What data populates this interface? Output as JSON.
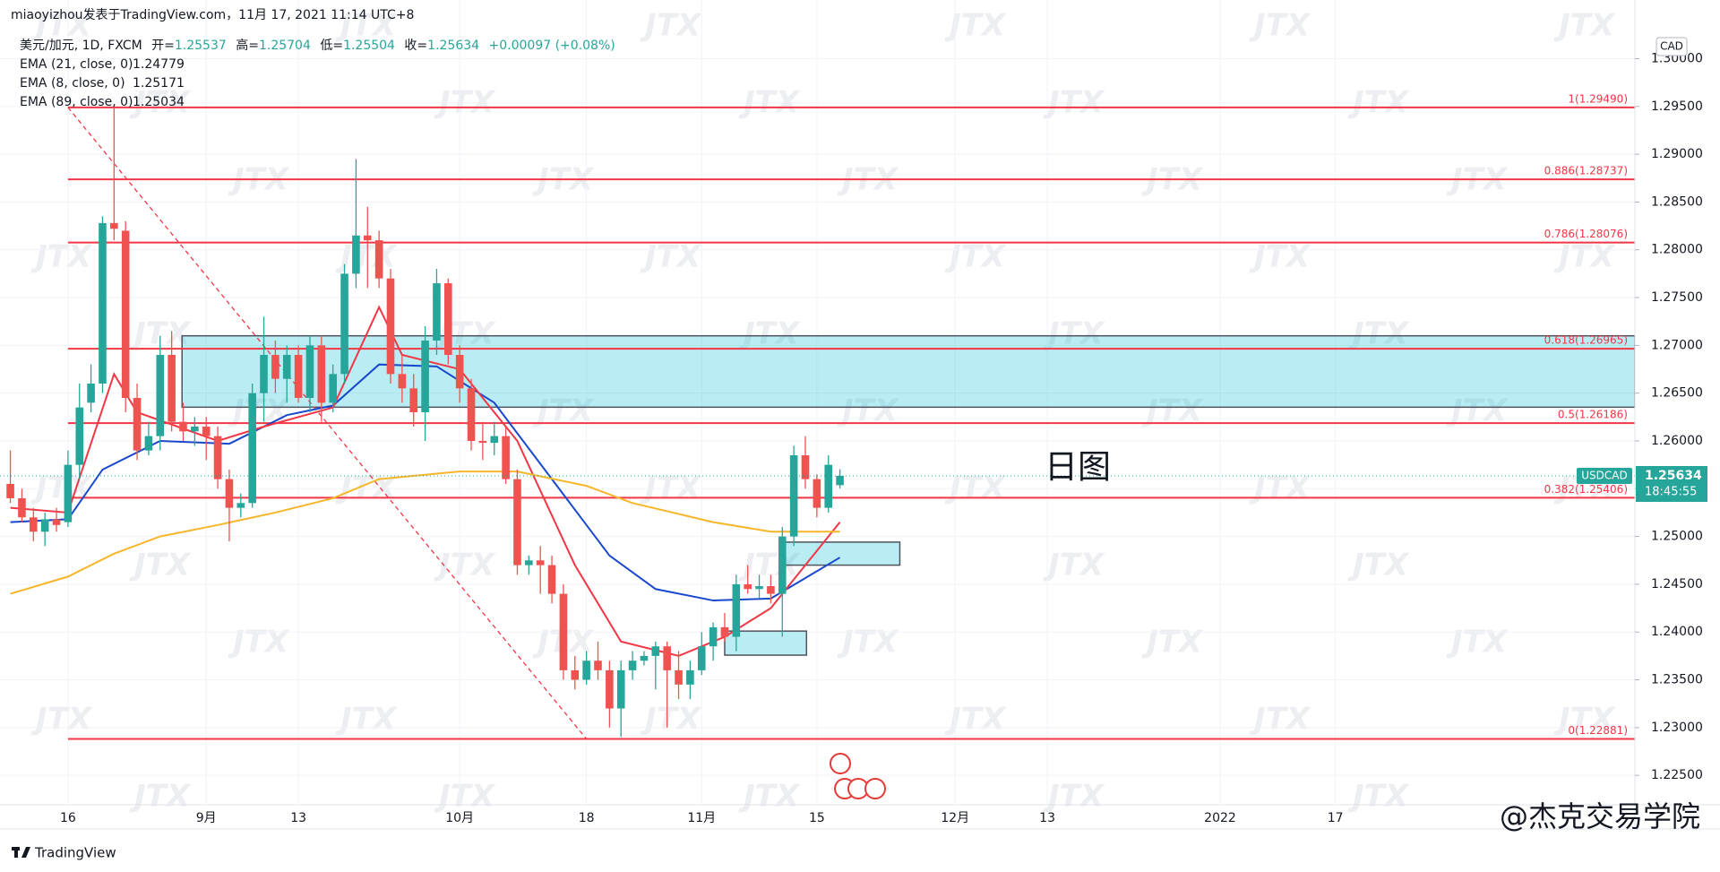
{
  "header": {
    "publisher": "miaoyizhou发表于TradingView.com，11月 17, 2021 11:14 UTC+8",
    "symbol": "美元/加元, 1D, FXCM",
    "ohlc": [
      {
        "label": "开=",
        "value": 1.25537
      },
      {
        "label": "高=",
        "value": 1.25704
      },
      {
        "label": "低=",
        "value": 1.25504
      },
      {
        "label": "收=",
        "value": 1.25634
      }
    ],
    "change": "+0.00097 (+0.08%)",
    "currency": "CAD",
    "annotation": "日图",
    "watermark": "JTX",
    "signature": "@杰克交易学院",
    "brand": "TradingView"
  },
  "chart_data": {
    "type": "candlestick",
    "up_color": "#26a69a",
    "down_color": "#ef5350",
    "xlim": [
      -0.9,
      141
    ],
    "ylim": [
      1.22192,
      1.30333
    ],
    "grid": true,
    "xticks": [
      {
        "value": 5,
        "label": "16"
      },
      {
        "value": 17,
        "label": "9月"
      },
      {
        "value": 25,
        "label": "13"
      },
      {
        "value": 39,
        "label": "10月"
      },
      {
        "value": 50,
        "label": "18"
      },
      {
        "value": 60,
        "label": "11月"
      },
      {
        "value": 70,
        "label": "15"
      },
      {
        "value": 82,
        "label": "12月"
      },
      {
        "value": 90,
        "label": "13"
      },
      {
        "value": 105,
        "label": "2022"
      },
      {
        "value": 115,
        "label": "17"
      }
    ],
    "yticks": [
      {
        "value": 1.3,
        "label": "1.30000"
      },
      {
        "value": 1.295,
        "label": "1.29500"
      },
      {
        "value": 1.29,
        "label": "1.29000"
      },
      {
        "value": 1.285,
        "label": "1.28500"
      },
      {
        "value": 1.28,
        "label": "1.28000"
      },
      {
        "value": 1.275,
        "label": "1.27500"
      },
      {
        "value": 1.27,
        "label": "1.27000"
      },
      {
        "value": 1.265,
        "label": "1.26500"
      },
      {
        "value": 1.26,
        "label": "1.26000"
      },
      {
        "value": 1.255,
        "label": "1.25500"
      },
      {
        "value": 1.25,
        "label": "1.25000"
      },
      {
        "value": 1.245,
        "label": "1.24500"
      },
      {
        "value": 1.24,
        "label": "1.24000"
      },
      {
        "value": 1.235,
        "label": "1.23500"
      },
      {
        "value": 1.23,
        "label": "1.23000"
      },
      {
        "value": 1.225,
        "label": "1.22500"
      }
    ],
    "open": [
      1.2555,
      1.254,
      1.252,
      1.2505,
      1.2518,
      1.2515,
      1.2575,
      1.264,
      1.266,
      1.2828,
      1.282,
      1.2645,
      1.259,
      1.2605,
      1.269,
      1.262,
      1.261,
      1.2615,
      1.2605,
      1.256,
      1.253,
      1.2535,
      1.265,
      1.269,
      1.2665,
      1.269,
      1.2645,
      1.27,
      1.264,
      1.267,
      1.2775,
      1.2815,
      1.281,
      1.277,
      1.267,
      1.2655,
      1.263,
      1.2705,
      1.2765,
      1.269,
      1.2655,
      1.26,
      1.2598,
      1.2605,
      1.256,
      1.247,
      1.2475,
      1.247,
      1.244,
      1.236,
      1.235,
      1.237,
      1.236,
      1.232,
      1.236,
      1.237,
      1.2375,
      1.2385,
      1.236,
      1.2345,
      1.236,
      1.2385,
      1.2405,
      1.2395,
      1.245,
      1.2445,
      1.2448,
      1.244,
      1.25,
      1.2585,
      1.256,
      1.253,
      1.25537
    ],
    "high": [
      1.259,
      1.255,
      1.253,
      1.2525,
      1.253,
      1.259,
      1.266,
      1.268,
      1.2835,
      1.295,
      1.283,
      1.266,
      1.262,
      1.271,
      1.2715,
      1.264,
      1.2625,
      1.2625,
      1.2615,
      1.257,
      1.2545,
      1.266,
      1.273,
      1.2705,
      1.27,
      1.27,
      1.271,
      1.271,
      1.268,
      1.2785,
      1.2895,
      1.2845,
      1.282,
      1.278,
      1.269,
      1.267,
      1.272,
      1.278,
      1.277,
      1.27,
      1.2665,
      1.262,
      1.262,
      1.2615,
      1.257,
      1.248,
      1.249,
      1.248,
      1.245,
      1.2375,
      1.238,
      1.239,
      1.237,
      1.237,
      1.238,
      1.238,
      1.239,
      1.239,
      1.238,
      1.237,
      1.24,
      1.241,
      1.242,
      1.246,
      1.247,
      1.246,
      1.246,
      1.251,
      1.2595,
      1.2605,
      1.2565,
      1.2585,
      1.25704
    ],
    "low": [
      1.2535,
      1.2515,
      1.2495,
      1.249,
      1.2505,
      1.251,
      1.256,
      1.263,
      1.265,
      1.281,
      1.263,
      1.258,
      1.2585,
      1.259,
      1.261,
      1.26,
      1.2595,
      1.258,
      1.255,
      1.2495,
      1.252,
      1.253,
      1.262,
      1.265,
      1.264,
      1.264,
      1.263,
      1.262,
      1.263,
      1.266,
      1.276,
      1.276,
      1.276,
      1.266,
      1.264,
      1.2615,
      1.26,
      1.269,
      1.268,
      1.264,
      1.259,
      1.258,
      1.2585,
      1.2555,
      1.246,
      1.246,
      1.244,
      1.243,
      1.235,
      1.234,
      1.2345,
      1.235,
      1.23,
      1.229,
      1.235,
      1.2365,
      1.234,
      1.23,
      1.233,
      1.233,
      1.2355,
      1.237,
      1.239,
      1.238,
      1.244,
      1.2435,
      1.243,
      1.2395,
      1.249,
      1.255,
      1.252,
      1.2525,
      1.25504
    ],
    "close": [
      1.254,
      1.252,
      1.2505,
      1.2518,
      1.2512,
      1.2575,
      1.2635,
      1.266,
      1.2828,
      1.2822,
      1.2645,
      1.259,
      1.2605,
      1.269,
      1.262,
      1.261,
      1.2615,
      1.2605,
      1.256,
      1.253,
      1.2535,
      1.265,
      1.269,
      1.2665,
      1.269,
      1.2645,
      1.27,
      1.264,
      1.267,
      1.2775,
      1.2815,
      1.281,
      1.277,
      1.267,
      1.2655,
      1.263,
      1.2705,
      1.2765,
      1.269,
      1.2655,
      1.26,
      1.2598,
      1.2605,
      1.256,
      1.247,
      1.2475,
      1.247,
      1.244,
      1.236,
      1.235,
      1.237,
      1.236,
      1.232,
      1.236,
      1.237,
      1.2375,
      1.2385,
      1.236,
      1.2345,
      1.236,
      1.2385,
      1.2405,
      1.2395,
      1.245,
      1.2445,
      1.2448,
      1.244,
      1.25,
      1.2585,
      1.256,
      1.253,
      1.2575,
      1.25634
    ],
    "series": [
      {
        "name": "EMA (21, close, 0)",
        "last": 1.24779,
        "color": "#1848cc",
        "x": [
          0,
          5,
          8,
          13,
          19,
          24,
          28,
          32,
          37,
          42,
          47,
          52,
          56,
          61,
          66,
          72
        ],
        "values": [
          1.2515,
          1.2518,
          1.257,
          1.26,
          1.2597,
          1.2627,
          1.2637,
          1.268,
          1.2678,
          1.264,
          1.256,
          1.248,
          1.2445,
          1.2433,
          1.2435,
          1.2478
        ]
      },
      {
        "name": "EMA (8, close, 0)",
        "last": 1.25171,
        "color": "#f23645",
        "x": [
          0,
          5,
          9,
          11,
          18,
          22,
          28,
          32,
          34,
          39,
          44,
          49,
          53,
          58,
          62,
          66,
          72
        ],
        "values": [
          1.253,
          1.2525,
          1.267,
          1.263,
          1.26,
          1.2615,
          1.2635,
          1.274,
          1.269,
          1.2675,
          1.26,
          1.247,
          1.239,
          1.2375,
          1.2395,
          1.2425,
          1.2515
        ]
      },
      {
        "name": "EMA (89, close, 0)",
        "last": 1.25034,
        "color": "#f7b62a",
        "x": [
          0,
          5,
          9,
          13,
          18,
          23,
          28,
          32,
          39,
          44,
          50,
          54,
          61,
          66,
          72
        ],
        "values": [
          1.244,
          1.2458,
          1.2482,
          1.25,
          1.2512,
          1.2525,
          1.254,
          1.256,
          1.2568,
          1.2568,
          1.2553,
          1.2535,
          1.2515,
          1.2505,
          1.2505
        ]
      }
    ],
    "fib": {
      "color": "#f23645",
      "x": [
        5,
        141
      ],
      "levels": [
        {
          "value": 1.2949,
          "label": "1(1.29490)"
        },
        {
          "value": 1.28737,
          "label": "0.886(1.28737)"
        },
        {
          "value": 1.28076,
          "label": "0.786(1.28076)"
        },
        {
          "value": 1.26965,
          "label": "0.618(1.26965)"
        },
        {
          "value": 1.26186,
          "label": "0.5(1.26186)"
        },
        {
          "value": 1.25406,
          "label": "0.382(1.25406)"
        },
        {
          "value": 1.22881,
          "label": "0(1.22881)"
        }
      ]
    },
    "trendline": {
      "x": [
        5,
        50
      ],
      "values": [
        1.2949,
        1.22881
      ]
    },
    "zones": [
      {
        "x": [
          14.9,
          141
        ],
        "y": [
          1.271,
          1.26353
        ]
      },
      {
        "x": [
          67,
          77.2
        ],
        "y": [
          1.24941,
          1.247
        ]
      },
      {
        "x": [
          62,
          69.1
        ],
        "y": [
          1.2401,
          1.23758
        ]
      }
    ],
    "last_price": {
      "symbol": "USDCAD",
      "value": 1.25634,
      "countdown": "18:45:55"
    }
  }
}
